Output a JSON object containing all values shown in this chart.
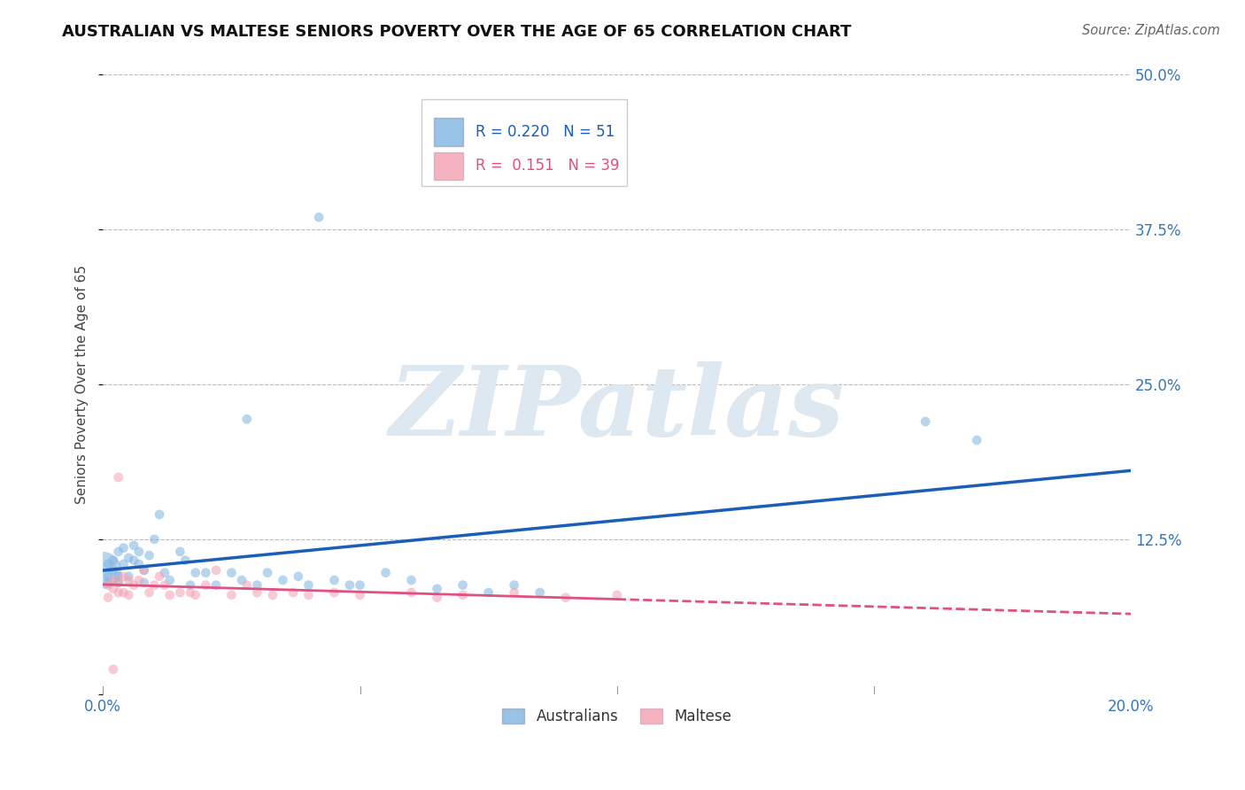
{
  "title": "AUSTRALIAN VS MALTESE SENIORS POVERTY OVER THE AGE OF 65 CORRELATION CHART",
  "source": "Source: ZipAtlas.com",
  "ylabel": "Seniors Poverty Over the Age of 65",
  "xlim": [
    0.0,
    0.2
  ],
  "ylim": [
    0.0,
    0.5
  ],
  "xticks": [
    0.0,
    0.05,
    0.1,
    0.15,
    0.2
  ],
  "yticks": [
    0.0,
    0.125,
    0.25,
    0.375,
    0.5
  ],
  "ytick_labels": [
    "",
    "12.5%",
    "25.0%",
    "37.5%",
    "50.0%"
  ],
  "xtick_labels": [
    "0.0%",
    "",
    "",
    "",
    "20.0%"
  ],
  "grid_color": "#bbbbbb",
  "background_color": "#ffffff",
  "australian_color": "#7fb3e0",
  "maltese_color": "#f4a0b0",
  "line_aus_color": "#1a5eb8",
  "line_malt_color": "#e05080",
  "watermark_color": "#dde8f0",
  "legend_R_aus": "0.220",
  "legend_N_aus": "51",
  "legend_R_malt": "0.151",
  "legend_N_malt": "39",
  "aus_x": [
    0.0,
    0.001,
    0.001,
    0.001,
    0.002,
    0.002,
    0.003,
    0.003,
    0.003,
    0.004,
    0.004,
    0.005,
    0.005,
    0.006,
    0.006,
    0.007,
    0.007,
    0.008,
    0.008,
    0.009,
    0.01,
    0.011,
    0.012,
    0.013,
    0.015,
    0.016,
    0.017,
    0.018,
    0.02,
    0.022,
    0.025,
    0.027,
    0.028,
    0.03,
    0.032,
    0.035,
    0.038,
    0.04,
    0.042,
    0.045,
    0.048,
    0.05,
    0.055,
    0.06,
    0.065,
    0.07,
    0.075,
    0.08,
    0.085,
    0.16,
    0.17
  ],
  "aus_y": [
    0.1,
    0.095,
    0.105,
    0.09,
    0.1,
    0.108,
    0.095,
    0.115,
    0.09,
    0.105,
    0.118,
    0.11,
    0.095,
    0.12,
    0.108,
    0.115,
    0.105,
    0.09,
    0.1,
    0.112,
    0.125,
    0.145,
    0.098,
    0.092,
    0.115,
    0.108,
    0.088,
    0.098,
    0.098,
    0.088,
    0.098,
    0.092,
    0.222,
    0.088,
    0.098,
    0.092,
    0.095,
    0.088,
    0.385,
    0.092,
    0.088,
    0.088,
    0.098,
    0.092,
    0.085,
    0.088,
    0.082,
    0.088,
    0.082,
    0.22,
    0.205
  ],
  "aus_size": [
    900,
    60,
    60,
    60,
    60,
    60,
    60,
    60,
    60,
    60,
    60,
    60,
    60,
    60,
    60,
    60,
    60,
    60,
    60,
    60,
    60,
    60,
    60,
    60,
    60,
    60,
    60,
    60,
    60,
    60,
    60,
    60,
    60,
    60,
    60,
    60,
    60,
    60,
    60,
    60,
    60,
    60,
    60,
    60,
    60,
    60,
    60,
    60,
    60,
    60,
    60
  ],
  "malt_x": [
    0.001,
    0.001,
    0.002,
    0.002,
    0.003,
    0.003,
    0.004,
    0.004,
    0.005,
    0.005,
    0.006,
    0.007,
    0.008,
    0.009,
    0.01,
    0.011,
    0.012,
    0.013,
    0.015,
    0.017,
    0.018,
    0.02,
    0.022,
    0.025,
    0.028,
    0.03,
    0.033,
    0.037,
    0.04,
    0.045,
    0.05,
    0.06,
    0.065,
    0.07,
    0.08,
    0.09,
    0.1,
    0.003,
    0.002
  ],
  "malt_y": [
    0.088,
    0.078,
    0.085,
    0.092,
    0.09,
    0.082,
    0.095,
    0.082,
    0.092,
    0.08,
    0.088,
    0.092,
    0.1,
    0.082,
    0.088,
    0.095,
    0.088,
    0.08,
    0.082,
    0.082,
    0.08,
    0.088,
    0.1,
    0.08,
    0.088,
    0.082,
    0.08,
    0.082,
    0.08,
    0.082,
    0.08,
    0.082,
    0.078,
    0.08,
    0.082,
    0.078,
    0.08,
    0.175,
    0.02
  ],
  "malt_size": [
    60,
    60,
    60,
    60,
    60,
    60,
    60,
    60,
    60,
    60,
    60,
    60,
    60,
    60,
    60,
    60,
    60,
    60,
    60,
    60,
    60,
    60,
    60,
    60,
    60,
    60,
    60,
    60,
    60,
    60,
    60,
    60,
    60,
    60,
    60,
    60,
    60,
    60,
    60
  ]
}
